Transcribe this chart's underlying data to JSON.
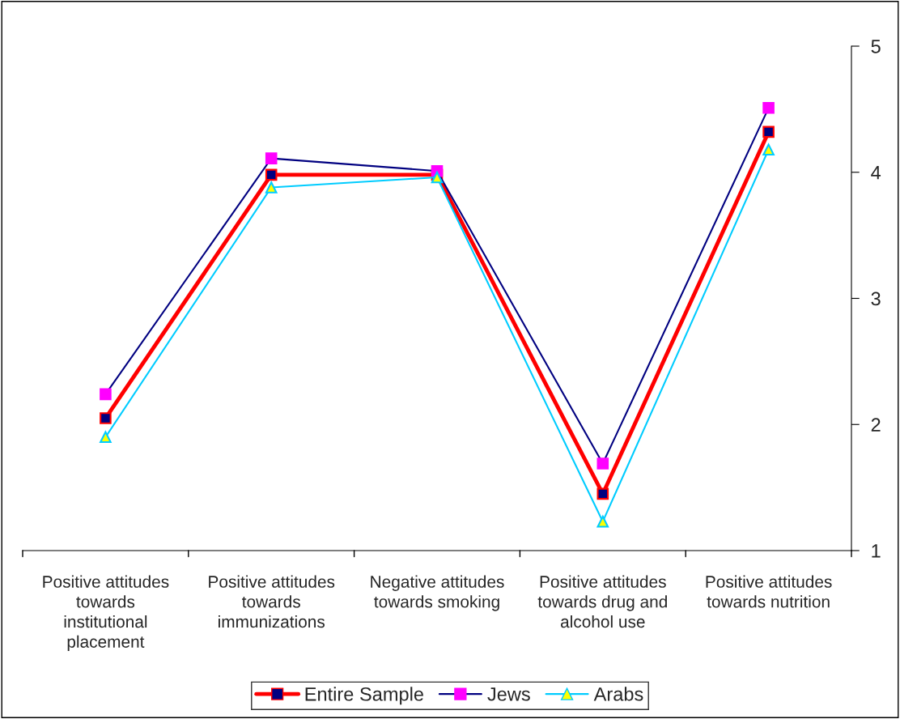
{
  "chart_data": {
    "type": "line",
    "categories": [
      "Positive attitudes\ntowards\ninstitutional\nplacement",
      "Positive attitudes\ntowards\nimmunizations",
      "Negative attitudes\ntowards smoking",
      "Positive attitudes\ntowards drug and\nalcohol use",
      "Positive attitudes\ntowards nutrition"
    ],
    "series": [
      {
        "name": "Entire Sample",
        "color": "#ff0000",
        "marker": "square",
        "values": [
          2.05,
          3.98,
          3.98,
          1.45,
          4.32
        ]
      },
      {
        "name": "Jews",
        "color": "#000080",
        "marker": "square",
        "values": [
          2.24,
          4.11,
          4.01,
          1.69,
          4.51
        ]
      },
      {
        "name": "Arabs",
        "color": "#00ccff",
        "marker": "triangle",
        "values": [
          1.9,
          3.88,
          3.96,
          1.23,
          4.18
        ]
      }
    ],
    "ylim": [
      1,
      5
    ],
    "yticks": [
      1,
      2,
      3,
      4,
      5
    ],
    "grid": false,
    "legend": "bottom",
    "line_style": "solid"
  }
}
